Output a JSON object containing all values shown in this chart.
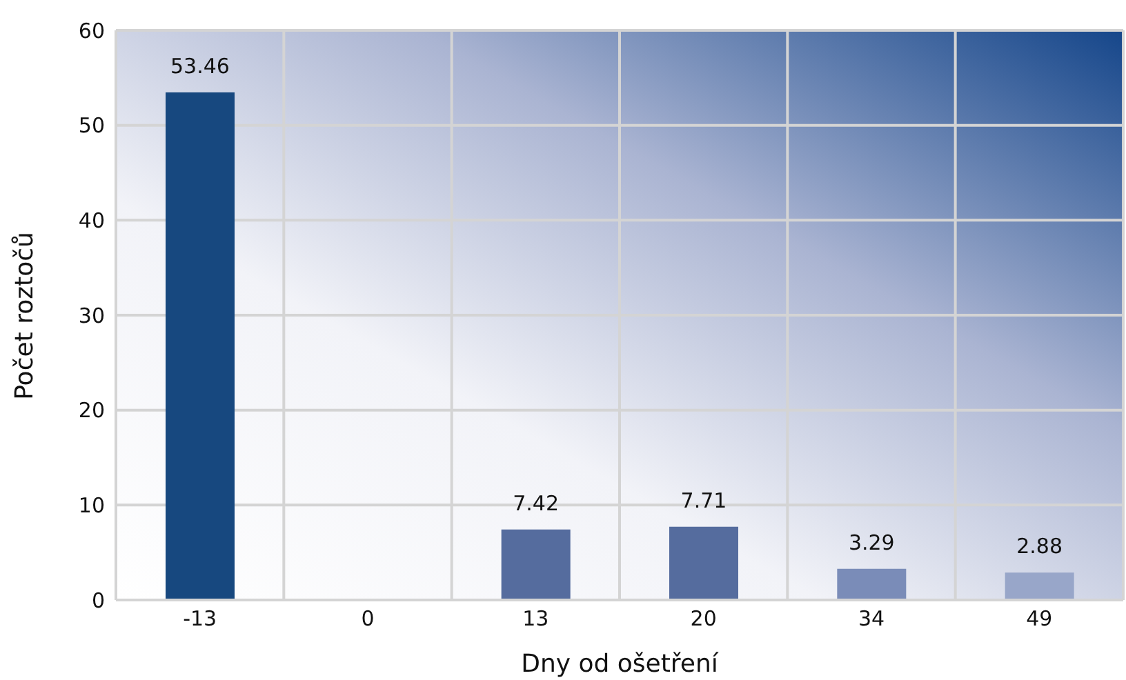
{
  "chart_data": {
    "type": "bar",
    "categories": [
      "-13",
      "0",
      "13",
      "20",
      "34",
      "49"
    ],
    "values": [
      53.46,
      null,
      7.42,
      7.71,
      3.29,
      2.88
    ],
    "colors": [
      "#17487f",
      "#17487f",
      "#556c9e",
      "#556c9e",
      "#7a8cb8",
      "#98a6c9"
    ],
    "xlabel": "Dny od ošetření",
    "ylabel": "Počet roztočů",
    "ylim": [
      0,
      60
    ],
    "yticks": [
      0,
      10,
      20,
      30,
      40,
      50,
      60
    ],
    "grid": true,
    "data_labels": true
  }
}
